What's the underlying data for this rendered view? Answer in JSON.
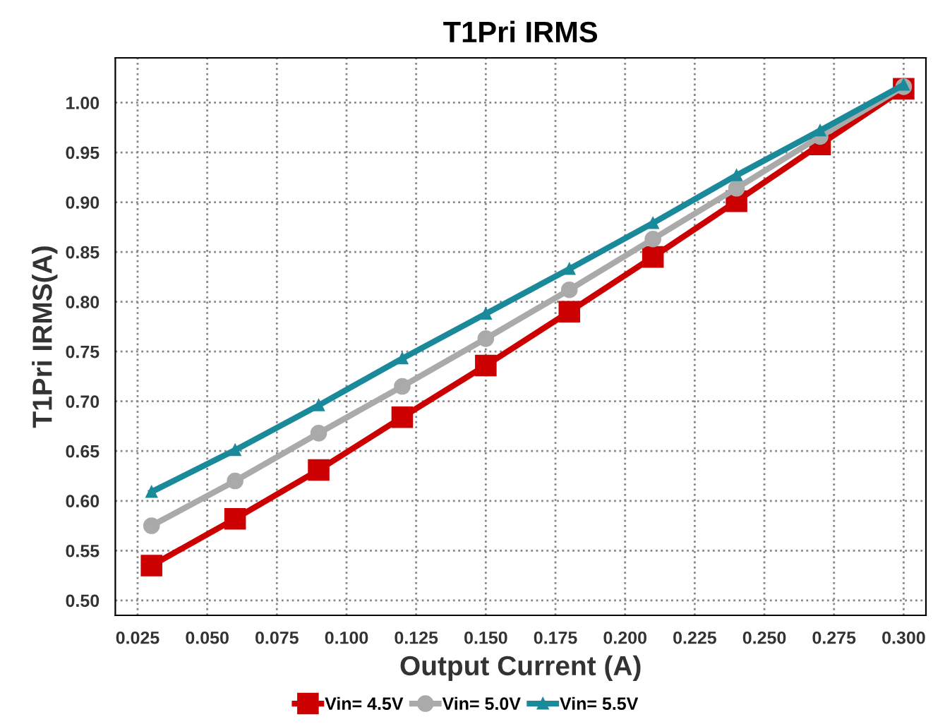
{
  "chart_data": {
    "type": "line",
    "title": "T1Pri IRMS",
    "xlabel": "Output Current (A)",
    "ylabel": "T1Pri IRMS(A)",
    "x": [
      0.03,
      0.06,
      0.09,
      0.12,
      0.15,
      0.18,
      0.21,
      0.24,
      0.27,
      0.3
    ],
    "series": [
      {
        "name": "Vin= 4.5V",
        "color": "#cc0000",
        "marker": "square",
        "values": [
          0.535,
          0.582,
          0.631,
          0.684,
          0.736,
          0.79,
          0.845,
          0.901,
          0.958,
          1.014
        ]
      },
      {
        "name": "Vin= 5.0V",
        "color": "#aaaaaa",
        "marker": "circle",
        "values": [
          0.575,
          0.62,
          0.668,
          0.715,
          0.763,
          0.812,
          0.863,
          0.914,
          0.966,
          1.016
        ]
      },
      {
        "name": "Vin= 5.5V",
        "color": "#1a8a9a",
        "marker": "triangle",
        "values": [
          0.609,
          0.651,
          0.696,
          0.743,
          0.788,
          0.833,
          0.879,
          0.927,
          0.972,
          1.018
        ]
      }
    ],
    "xlim": [
      0.017,
      0.308
    ],
    "xticks": [
      {
        "value": 0.025,
        "label": "0.025"
      },
      {
        "value": 0.05,
        "label": "0.050"
      },
      {
        "value": 0.075,
        "label": "0.075"
      },
      {
        "value": 0.1,
        "label": "0.100"
      },
      {
        "value": 0.125,
        "label": "0.125"
      },
      {
        "value": 0.15,
        "label": "0.150"
      },
      {
        "value": 0.175,
        "label": "0.175"
      },
      {
        "value": 0.2,
        "label": "0.200"
      },
      {
        "value": 0.225,
        "label": "0.225"
      },
      {
        "value": 0.25,
        "label": "0.250"
      },
      {
        "value": 0.275,
        "label": "0.275"
      },
      {
        "value": 0.3,
        "label": "0.300"
      }
    ],
    "ylim": [
      0.485,
      1.045
    ],
    "yticks": [
      {
        "value": 0.5,
        "label": "0.50"
      },
      {
        "value": 0.55,
        "label": "0.55"
      },
      {
        "value": 0.6,
        "label": "0.60"
      },
      {
        "value": 0.65,
        "label": "0.65"
      },
      {
        "value": 0.7,
        "label": "0.70"
      },
      {
        "value": 0.75,
        "label": "0.75"
      },
      {
        "value": 0.8,
        "label": "0.80"
      },
      {
        "value": 0.85,
        "label": "0.85"
      },
      {
        "value": 0.9,
        "label": "0.90"
      },
      {
        "value": 0.95,
        "label": "0.95"
      },
      {
        "value": 1.0,
        "label": "1.00"
      }
    ],
    "grid": true,
    "legend": "bottom",
    "line_style": "solid"
  }
}
